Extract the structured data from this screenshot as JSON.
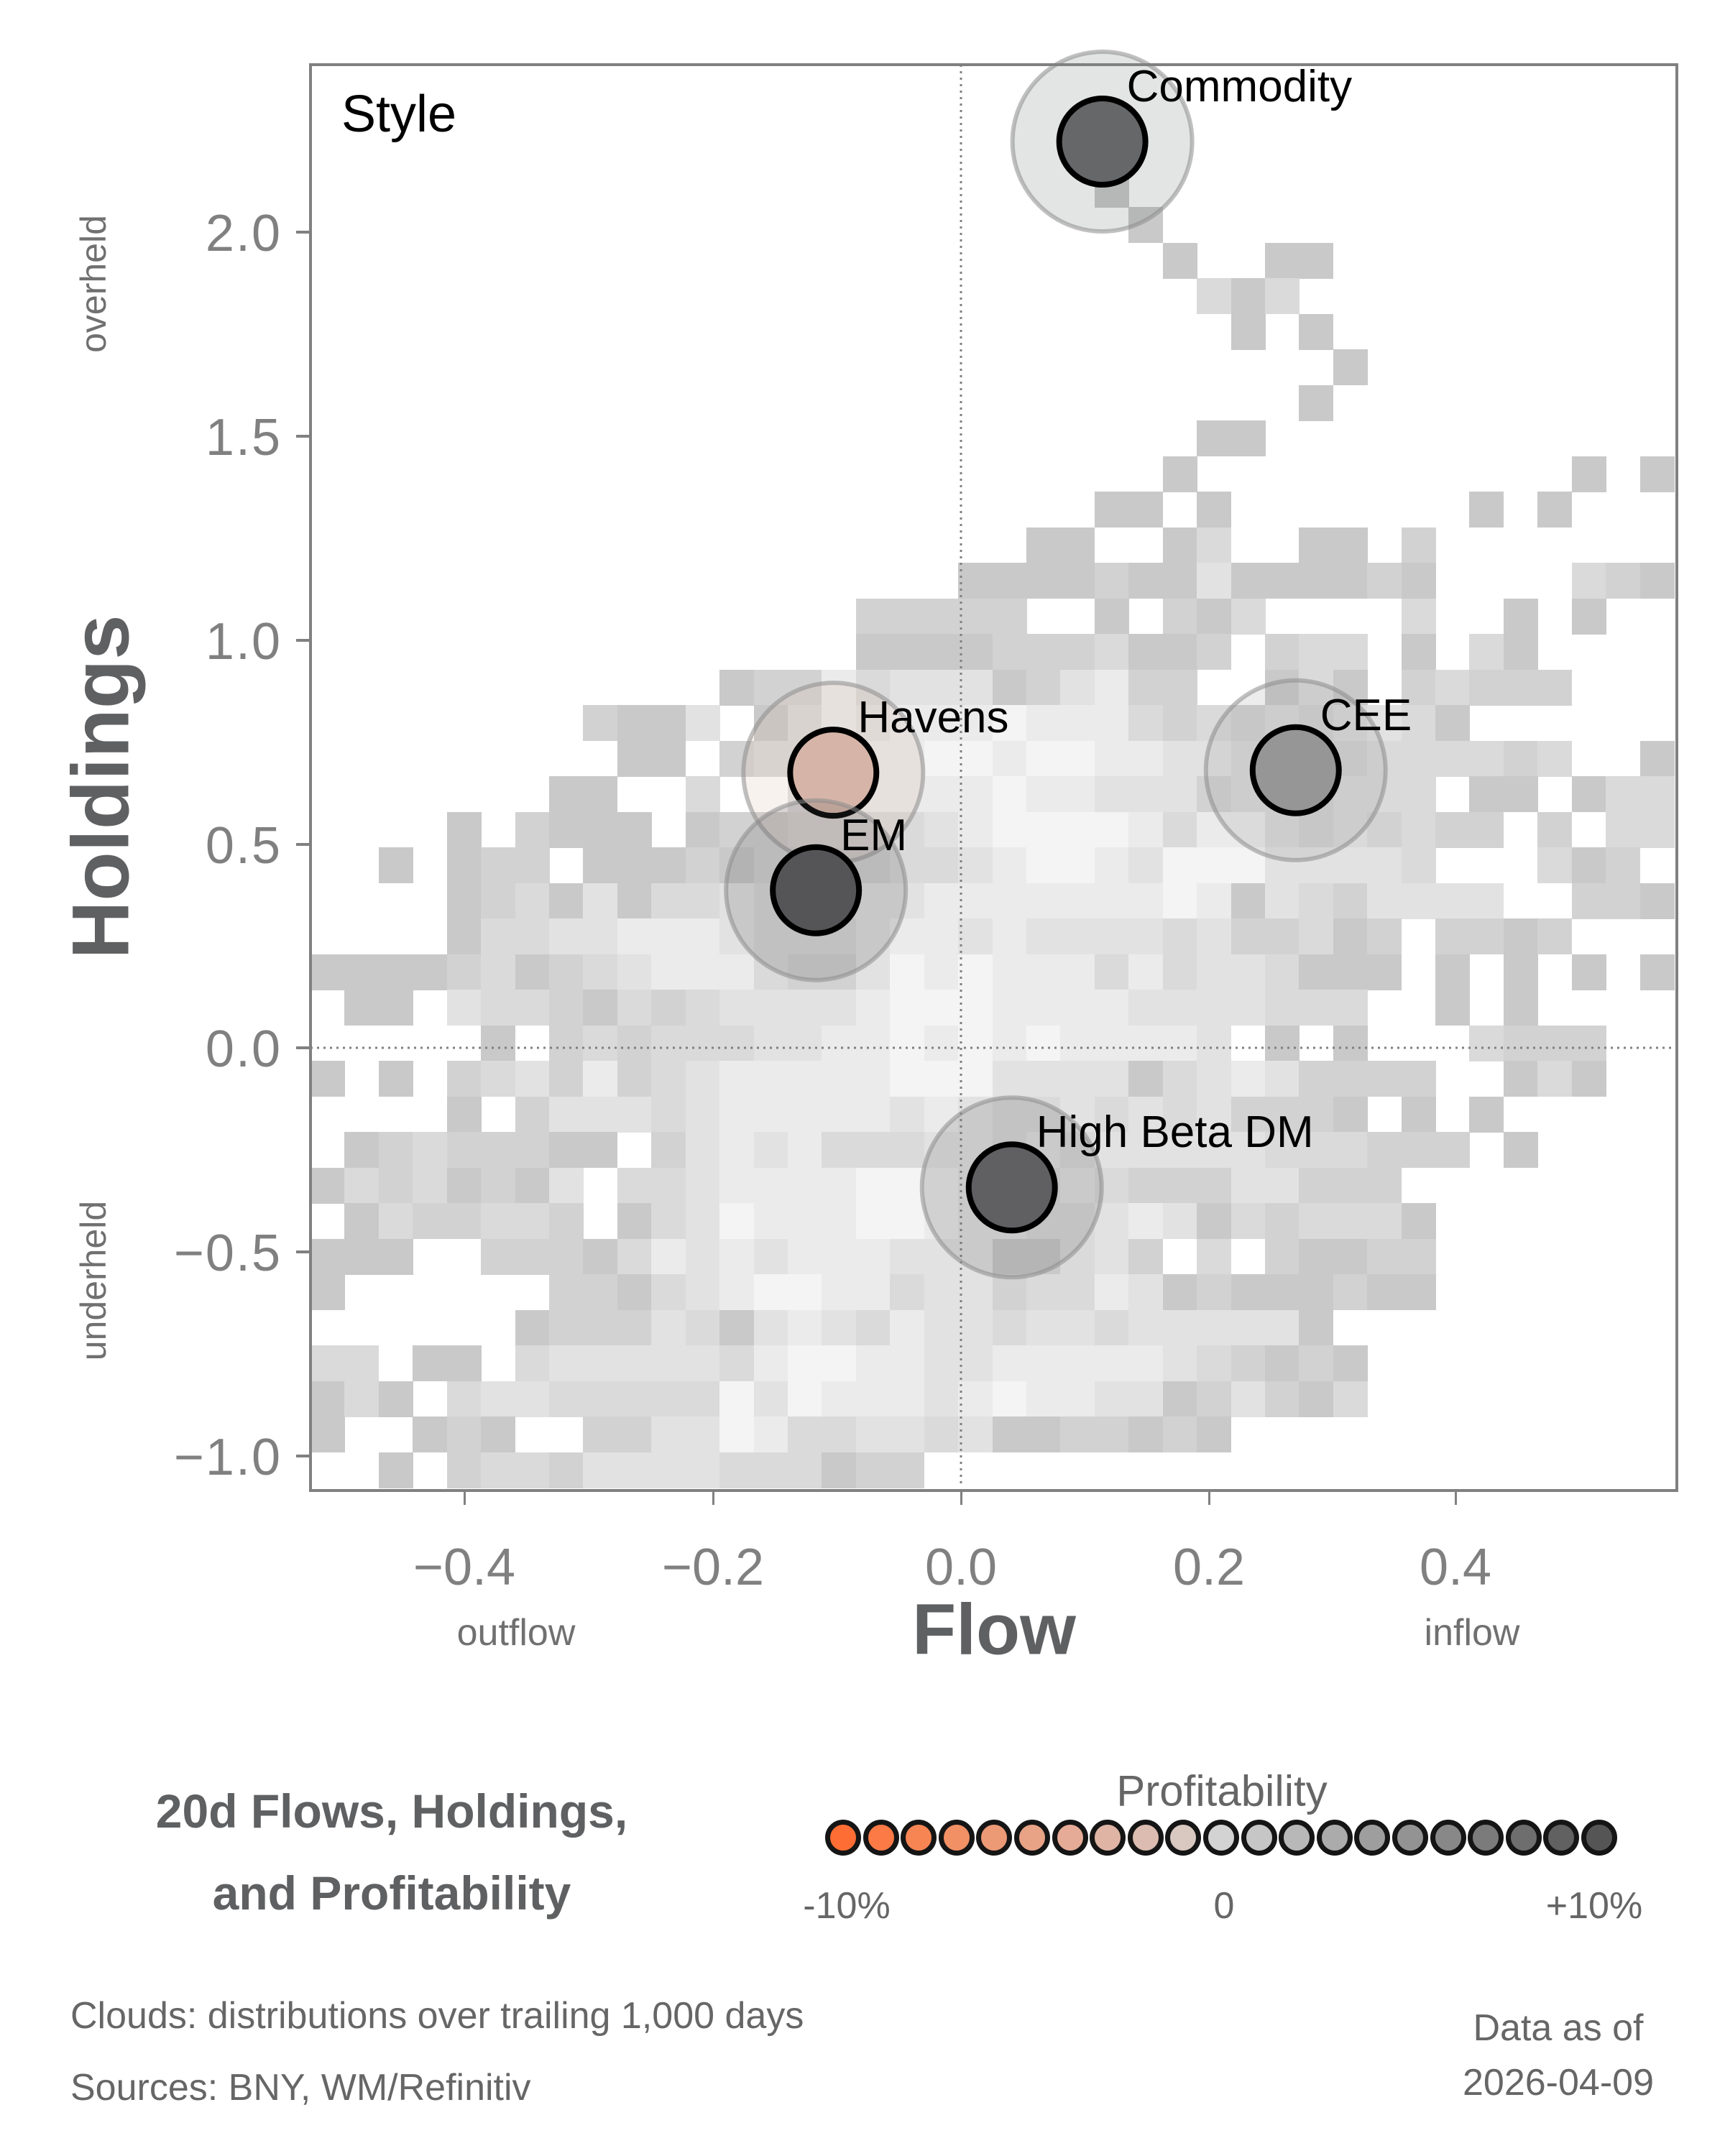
{
  "panel_label": "Style",
  "axes": {
    "y_label": "Holdings",
    "x_label": "Flow",
    "y_top_note": "overheld",
    "y_bottom_note": "underheld",
    "x_left_note": "outflow",
    "x_right_note": "inflow",
    "y_ticks": [
      "2.0",
      "1.5",
      "1.0",
      "0.5",
      "0.0",
      "−0.5",
      "−1.0"
    ],
    "x_ticks": [
      "−0.4",
      "−0.2",
      "0.0",
      "0.2",
      "0.4"
    ]
  },
  "title": {
    "line1": "20d Flows, Holdings,",
    "line2": "and Profitability"
  },
  "legend": {
    "title": "Profitability",
    "min_label": "-10%",
    "mid_label": "0",
    "max_label": "+10%",
    "colors": [
      "#fe6e34",
      "#fb7a46",
      "#f68553",
      "#f19065",
      "#ec9a76",
      "#e8a386",
      "#e5ab96",
      "#dfb4a5",
      "#dcbcb0",
      "#d8c8c0",
      "#d3d3d3",
      "#c6c6c6",
      "#b8b8b8",
      "#ababab",
      "#9e9e9e",
      "#939393",
      "#888888",
      "#7b7b7b",
      "#6e6e6e",
      "#616161",
      "#555555"
    ]
  },
  "footer": {
    "clouds_note": "Clouds:  distributions over trailing 1,000 days",
    "sources_note": "Sources:  BNY, WM/Refinitiv",
    "date_label": "Data as of",
    "date_value": "2026-04-09"
  },
  "chart_data": {
    "type": "scatter",
    "title": "20d Flows, Holdings, and Profitability",
    "panel": "Style",
    "xlabel": "Flow",
    "ylabel": "Holdings",
    "xlim": [
      -0.527,
      0.575
    ],
    "ylim": [
      -1.08,
      2.41
    ],
    "x_ticks": [
      -0.4,
      -0.2,
      0.0,
      0.2,
      0.4
    ],
    "y_ticks": [
      -1.0,
      -0.5,
      0.0,
      0.5,
      1.0,
      1.5,
      2.0
    ],
    "reference_lines": {
      "x": 0.0,
      "y": 0.0,
      "style": "dotted"
    },
    "grid": false,
    "color_scale": {
      "label": "Profitability",
      "min": "-10%",
      "mid": "0",
      "max": "+10%",
      "low_color": "#fe6e34",
      "mid_color": "#d3d3d3",
      "high_color": "#555555"
    },
    "points": [
      {
        "name": "Commodity",
        "x": 0.114,
        "y": 2.22,
        "color": "#666769"
      },
      {
        "name": "Havens",
        "x": -0.103,
        "y": 0.674,
        "color": "#d6b5a8"
      },
      {
        "name": "EM",
        "x": -0.117,
        "y": 0.386,
        "color": "#555557"
      },
      {
        "name": "CEE",
        "x": 0.27,
        "y": 0.68,
        "color": "#959695"
      },
      {
        "name": "High Beta DM",
        "x": 0.041,
        "y": -0.342,
        "color": "#606062"
      }
    ],
    "cloud_heatmap": {
      "description": "distributions over trailing 1,000 days",
      "bins": [
        40,
        40
      ],
      "levels": [
        "#ffffff",
        "#c9c9c9",
        "#d2d2d2",
        "#dadada",
        "#e2e2e2",
        "#ebebeb",
        "#f4f4f4"
      ],
      "rows_top_to_bottom": [
        "0000000000000000000000000000000000000000",
        "0000000000000000000000000000000000000000",
        "0000000000000000000000000000000000000000",
        "0000000000000000000000010000000000000000",
        "0000000000000000000000001000000000000000",
        "0000000000000000000000000100110000000000",
        "0000000000000000000000000031300000000000",
        "0000000000000000000000000001010000000000",
        "0000000000000000000000000000001000000000",
        "0000000000000000000000000000010000000000",
        "0000000000000000000000000011000000000000",
        "0000000000000000000000000100000000000101",
        "0000000000000000000000011010000000101000",
        "0000000000000000000001100130011020000000",
        "0000000000000000000111121141111210000321",
        "0000000000000000222220010213000030010100",
        "0000000000000000111122231120233010310000",
        "0000000000001225344412452200131023222000",
        "0000000021140135455565553232323431000000",
        "0000000001102335556656655443232333323001",
        "0000000110030045555565544423323330110133",
        "0000102111012233334566665355323232202033",
        "0010122011121222233456654666444430003120",
        "0000123141334334445555555651432444400221",
        "0000133445554333455454444342231202212000",
        "1111231234555322465655535344311101010101",
        "0110433213234444566655554444333001010000",
        "0000010232333445565656555540101000322200",
        "1010234252345555566644441345422220013100",
        "0000102444345555545433434342221010100000",
        "0123222110245453334434344444333222010000",
        "1323121403345555665433432224422200000000",
        "0132233201346555665443345413233310000000",
        "1110022213545455544411342030211220000000",
        "1000000221345665534423354121112110000000",
        "0000001222431454354434434444410000000000",
        "3301103444443566554455555432121000000000",
        "1310344333336465554565544124213000000000",
        "1001210022446533443411221210000000000000",
        "0010233244443331220000000000000000000000"
      ]
    }
  }
}
